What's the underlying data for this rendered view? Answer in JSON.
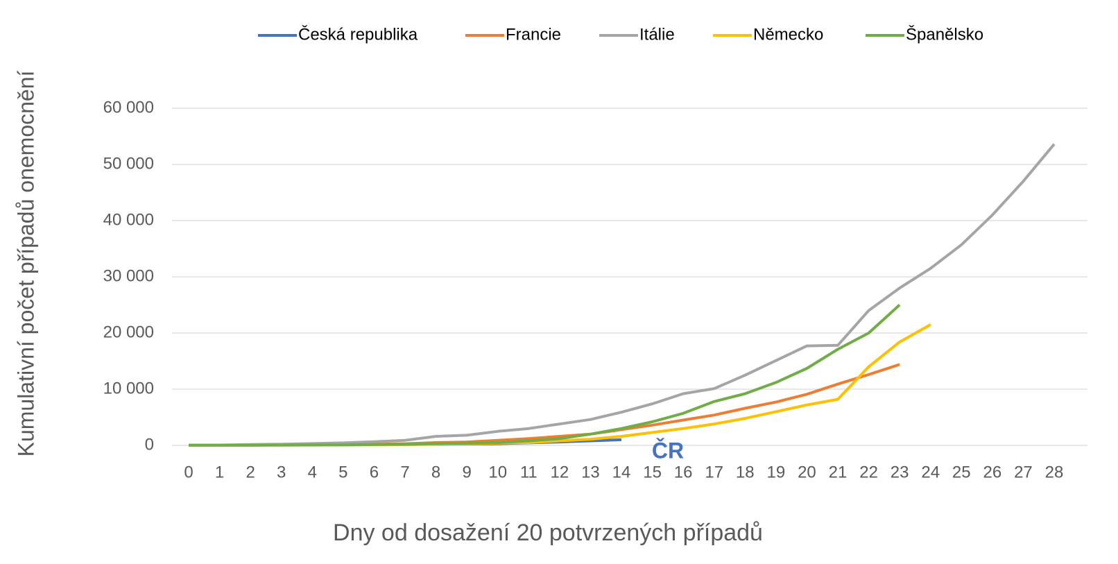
{
  "chart_data": {
    "type": "line",
    "x_label": "Dny od dosažení 20 potvrzených případů",
    "y_label": "Kumulativní počet případů onemocnění",
    "annotation": "ČR",
    "x": [
      0,
      1,
      2,
      3,
      4,
      5,
      6,
      7,
      8,
      9,
      10,
      11,
      12,
      13,
      14,
      15,
      16,
      17,
      18,
      19,
      20,
      21,
      22,
      23,
      24,
      25,
      26,
      27,
      28
    ],
    "xlim": [
      0,
      28
    ],
    "ylim": [
      0,
      60000
    ],
    "yticks": [
      0,
      {
        "value": 10000,
        "label": "10 000"
      },
      {
        "value": 20000,
        "label": "20 000"
      },
      {
        "value": 30000,
        "label": "30 000"
      },
      {
        "value": 40000,
        "label": "40 000"
      },
      {
        "value": 50000,
        "label": "50 000"
      },
      {
        "value": 60000,
        "label": "60 000"
      }
    ],
    "grid": true,
    "legend": "top",
    "series": [
      {
        "name": "Česká republika",
        "color": "#4472c4",
        "values": [
          20,
          25,
          40,
          60,
          80,
          100,
          120,
          150,
          200,
          250,
          300,
          450,
          600,
          800,
          1000,
          null,
          null,
          null,
          null,
          null,
          null,
          null,
          null,
          null,
          null,
          null,
          null,
          null,
          null
        ]
      },
      {
        "name": "Francie",
        "color": "#ed7d31",
        "values": [
          20,
          30,
          50,
          80,
          100,
          150,
          200,
          300,
          500,
          600,
          900,
          1200,
          1600,
          2000,
          2800,
          3600,
          4500,
          5400,
          6600,
          7700,
          9100,
          10900,
          12600,
          14400,
          null,
          null,
          null,
          null,
          null
        ]
      },
      {
        "name": "Itálie",
        "color": "#a5a5a5",
        "values": [
          20,
          60,
          150,
          220,
          320,
          450,
          650,
          900,
          1600,
          1800,
          2500,
          3000,
          3800,
          4600,
          5900,
          7400,
          9200,
          10100,
          12500,
          15100,
          17700,
          17800,
          24000,
          28000,
          31500,
          35700,
          41000,
          47000,
          53600
        ]
      },
      {
        "name": "Německo",
        "color": "#ffc000",
        "values": [
          20,
          25,
          30,
          40,
          50,
          70,
          100,
          150,
          200,
          300,
          400,
          500,
          800,
          1100,
          1600,
          2300,
          3000,
          3800,
          4800,
          6000,
          7200,
          8200,
          14000,
          18400,
          21500,
          null,
          null,
          null,
          null
        ]
      },
      {
        "name": "Španělsko",
        "color": "#70ad47",
        "values": [
          20,
          30,
          40,
          50,
          80,
          100,
          150,
          200,
          300,
          400,
          500,
          800,
          1200,
          2000,
          3000,
          4200,
          5700,
          7800,
          9200,
          11200,
          13700,
          17100,
          20000,
          25000,
          null,
          null,
          null,
          null,
          null
        ]
      }
    ]
  }
}
